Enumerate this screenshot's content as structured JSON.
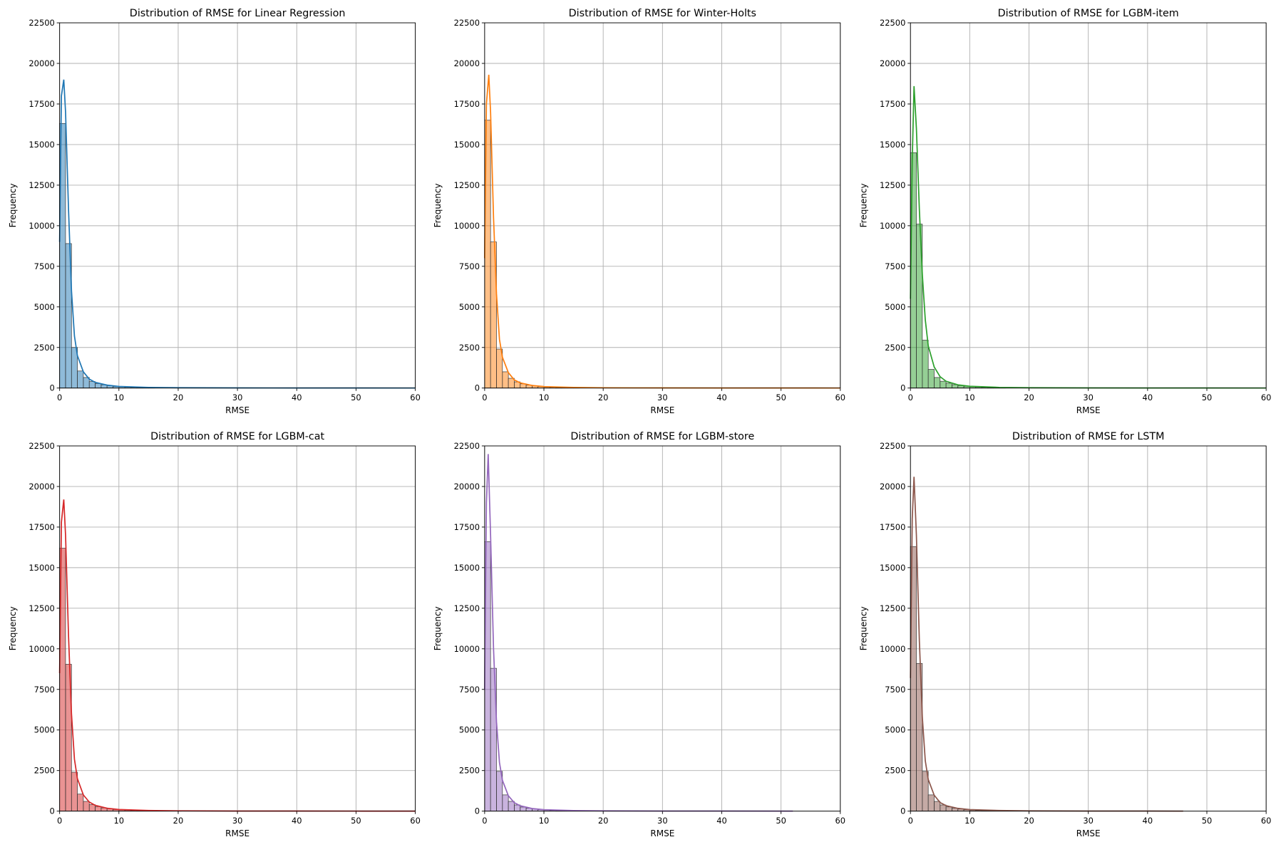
{
  "chart_data": [
    {
      "type": "histogram",
      "title": "Distribution of RMSE for Linear Regression",
      "xlabel": "RMSE",
      "ylabel": "Frequency",
      "color": "#1f77b4",
      "bins": [
        0,
        1,
        2,
        3,
        4,
        5,
        6,
        7,
        8,
        9,
        10,
        11,
        12,
        13,
        14,
        15,
        16
      ],
      "counts": [
        16300,
        8900,
        2500,
        1050,
        650,
        400,
        280,
        200,
        150,
        100,
        80,
        60,
        40,
        30,
        20,
        15
      ],
      "kde": {
        "x": [
          0,
          0.3,
          0.7,
          1,
          1.5,
          2,
          2.5,
          3,
          4,
          5,
          6,
          8,
          10,
          15,
          20,
          30,
          40,
          50,
          60
        ],
        "values": [
          9000,
          18000,
          19000,
          17000,
          11000,
          6000,
          3200,
          2000,
          1000,
          550,
          350,
          180,
          100,
          40,
          20,
          8,
          5,
          3,
          2
        ]
      },
      "xlim": [
        0,
        60
      ],
      "ylim": [
        0,
        22500
      ],
      "xticks": [
        0,
        10,
        20,
        30,
        40,
        50,
        60
      ],
      "yticks": [
        0,
        2500,
        5000,
        7500,
        10000,
        12500,
        15000,
        17500,
        20000,
        22500
      ],
      "grid": true
    },
    {
      "type": "histogram",
      "title": "Distribution of RMSE for Winter-Holts",
      "xlabel": "RMSE",
      "ylabel": "Frequency",
      "color": "#ff7f0e",
      "bins": [
        0,
        1,
        2,
        3,
        4,
        5,
        6,
        7,
        8,
        9,
        10,
        11,
        12,
        13,
        14,
        15,
        16
      ],
      "counts": [
        16500,
        9000,
        2400,
        1000,
        600,
        380,
        260,
        180,
        130,
        90,
        60,
        45,
        30,
        20,
        15,
        10
      ],
      "kde": {
        "x": [
          0,
          0.3,
          0.7,
          1,
          1.5,
          2,
          2.5,
          3,
          4,
          5,
          6,
          8,
          10,
          15,
          20,
          30,
          40,
          50,
          60
        ],
        "values": [
          8000,
          17500,
          19300,
          17000,
          10500,
          5800,
          3000,
          1900,
          950,
          500,
          320,
          160,
          90,
          35,
          18,
          8,
          5,
          3,
          2
        ]
      },
      "xlim": [
        0,
        60
      ],
      "ylim": [
        0,
        22500
      ],
      "xticks": [
        0,
        10,
        20,
        30,
        40,
        50,
        60
      ],
      "yticks": [
        0,
        2500,
        5000,
        7500,
        10000,
        12500,
        15000,
        17500,
        20000,
        22500
      ],
      "grid": true
    },
    {
      "type": "histogram",
      "title": "Distribution of RMSE for LGBM-item",
      "xlabel": "RMSE",
      "ylabel": "Frequency",
      "color": "#2ca02c",
      "bins": [
        0,
        1,
        2,
        3,
        4,
        5,
        6,
        7,
        8,
        9,
        10,
        11,
        12,
        13,
        14,
        15,
        16
      ],
      "counts": [
        14500,
        10100,
        2950,
        1150,
        650,
        420,
        300,
        210,
        150,
        110,
        80,
        60,
        45,
        30,
        20,
        15
      ],
      "kde": {
        "x": [
          0,
          0.3,
          0.6,
          1,
          1.5,
          2,
          2.5,
          3,
          4,
          5,
          6,
          8,
          10,
          15,
          20,
          30,
          40,
          50,
          60
        ],
        "values": [
          5500,
          14000,
          18600,
          16000,
          11000,
          7000,
          4200,
          2600,
          1300,
          700,
          420,
          200,
          110,
          40,
          20,
          8,
          5,
          3,
          2
        ]
      },
      "xlim": [
        0,
        60
      ],
      "ylim": [
        0,
        22500
      ],
      "xticks": [
        0,
        10,
        20,
        30,
        40,
        50,
        60
      ],
      "yticks": [
        0,
        2500,
        5000,
        7500,
        10000,
        12500,
        15000,
        17500,
        20000,
        22500
      ],
      "grid": true
    },
    {
      "type": "histogram",
      "title": "Distribution of RMSE for LGBM-cat",
      "xlabel": "RMSE",
      "ylabel": "Frequency",
      "color": "#d62728",
      "bins": [
        0,
        1,
        2,
        3,
        4,
        5,
        6,
        7,
        8,
        9,
        10,
        11,
        12,
        13,
        14,
        15,
        16
      ],
      "counts": [
        16200,
        9050,
        2400,
        1050,
        600,
        400,
        280,
        200,
        150,
        100,
        80,
        60,
        40,
        30,
        20,
        15
      ],
      "kde": {
        "x": [
          0,
          0.3,
          0.7,
          1,
          1.5,
          2,
          2.5,
          3,
          4,
          5,
          6,
          8,
          10,
          15,
          20,
          30,
          40,
          50,
          60
        ],
        "values": [
          8500,
          17800,
          19200,
          17000,
          10800,
          6000,
          3200,
          2000,
          1000,
          560,
          360,
          180,
          100,
          40,
          20,
          8,
          5,
          3,
          2
        ]
      },
      "xlim": [
        0,
        60
      ],
      "ylim": [
        0,
        22500
      ],
      "xticks": [
        0,
        10,
        20,
        30,
        40,
        50,
        60
      ],
      "yticks": [
        0,
        2500,
        5000,
        7500,
        10000,
        12500,
        15000,
        17500,
        20000,
        22500
      ],
      "grid": true
    },
    {
      "type": "histogram",
      "title": "Distribution of RMSE for LGBM-store",
      "xlabel": "RMSE",
      "ylabel": "Frequency",
      "color": "#9467bd",
      "bins": [
        0,
        1,
        2,
        3,
        4,
        5,
        6,
        7,
        8,
        9,
        10,
        11,
        12,
        13,
        14,
        15,
        16
      ],
      "counts": [
        16600,
        8800,
        2450,
        1000,
        600,
        380,
        250,
        180,
        130,
        90,
        60,
        45,
        30,
        20,
        15,
        10
      ],
      "kde": {
        "x": [
          0,
          0.3,
          0.6,
          1,
          1.5,
          2,
          2.5,
          3,
          4,
          5,
          6,
          8,
          10,
          15,
          20,
          30,
          40,
          52
        ],
        "values": [
          7500,
          19000,
          22000,
          17000,
          10000,
          5500,
          3000,
          1900,
          950,
          520,
          330,
          160,
          90,
          35,
          18,
          8,
          5,
          2
        ]
      },
      "xlim": [
        0,
        60
      ],
      "ylim": [
        0,
        22500
      ],
      "xticks": [
        0,
        10,
        20,
        30,
        40,
        50,
        60
      ],
      "yticks": [
        0,
        2500,
        5000,
        7500,
        10000,
        12500,
        15000,
        17500,
        20000,
        22500
      ],
      "grid": true
    },
    {
      "type": "histogram",
      "title": "Distribution of RMSE for LSTM",
      "xlabel": "RMSE",
      "ylabel": "Frequency",
      "color": "#8c564b",
      "bins": [
        0,
        1,
        2,
        3,
        4,
        5,
        6,
        7,
        8,
        9,
        10,
        11,
        12,
        13,
        14,
        15,
        16
      ],
      "counts": [
        16300,
        9100,
        2450,
        1000,
        600,
        380,
        260,
        180,
        130,
        90,
        60,
        45,
        30,
        20,
        15,
        10
      ],
      "kde": {
        "x": [
          0,
          0.3,
          0.6,
          1,
          1.5,
          2,
          2.5,
          3,
          4,
          5,
          6,
          8,
          10,
          15,
          20,
          30,
          40,
          46
        ],
        "values": [
          8200,
          18000,
          20600,
          17000,
          10500,
          5800,
          3100,
          1950,
          980,
          530,
          340,
          170,
          95,
          38,
          19,
          8,
          5,
          2
        ]
      },
      "xlim": [
        0,
        60
      ],
      "ylim": [
        0,
        22500
      ],
      "xticks": [
        0,
        10,
        20,
        30,
        40,
        50,
        60
      ],
      "yticks": [
        0,
        2500,
        5000,
        7500,
        10000,
        12500,
        15000,
        17500,
        20000,
        22500
      ],
      "grid": true
    }
  ]
}
